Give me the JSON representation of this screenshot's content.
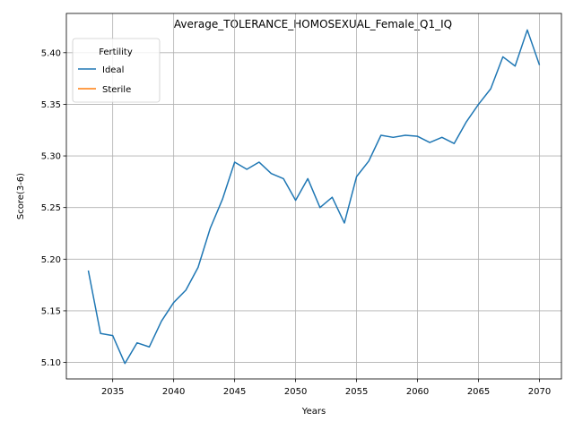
{
  "chart_data": {
    "type": "line",
    "title": "Average_TOLERANCE_HOMOSEXUAL_Female_Q1_IQ",
    "xlabel": "Years",
    "ylabel": "Score(3-6)",
    "xlim": [
      2031.2,
      2071.8
    ],
    "ylim": [
      5.084,
      5.438
    ],
    "xticks": [
      2035,
      2040,
      2045,
      2050,
      2055,
      2060,
      2065,
      2070
    ],
    "yticks": [
      5.1,
      5.15,
      5.2,
      5.25,
      5.3,
      5.35,
      5.4
    ],
    "xtick_labels": [
      "2035",
      "2040",
      "2045",
      "2050",
      "2055",
      "2060",
      "2065",
      "2070"
    ],
    "ytick_labels": [
      "5.10",
      "5.15",
      "5.20",
      "5.25",
      "5.30",
      "5.35",
      "5.40"
    ],
    "grid": true,
    "legend": {
      "title": "Fertility",
      "placement": "top-left"
    },
    "series": [
      {
        "name": "Ideal",
        "color": "#1f77b4",
        "x": [
          2033,
          2034,
          2035,
          2036,
          2037,
          2038,
          2039,
          2040,
          2041,
          2042,
          2043,
          2044,
          2045,
          2046,
          2047,
          2048,
          2049,
          2050,
          2051,
          2052,
          2053,
          2054,
          2055,
          2056,
          2057,
          2058,
          2059,
          2060,
          2061,
          2062,
          2063,
          2064,
          2065,
          2066,
          2067,
          2068,
          2069,
          2070
        ],
        "y": [
          5.189,
          5.128,
          5.126,
          5.099,
          5.119,
          5.115,
          5.14,
          5.158,
          5.17,
          5.192,
          5.23,
          5.258,
          5.294,
          5.287,
          5.294,
          5.283,
          5.278,
          5.257,
          5.278,
          5.25,
          5.26,
          5.235,
          5.28,
          5.295,
          5.32,
          5.318,
          5.32,
          5.319,
          5.313,
          5.318,
          5.312,
          5.333,
          5.35,
          5.365,
          5.396,
          5.387,
          5.422,
          5.388
        ]
      },
      {
        "name": "Sterile",
        "color": "#ff7f0e",
        "x": [],
        "y": []
      }
    ]
  }
}
